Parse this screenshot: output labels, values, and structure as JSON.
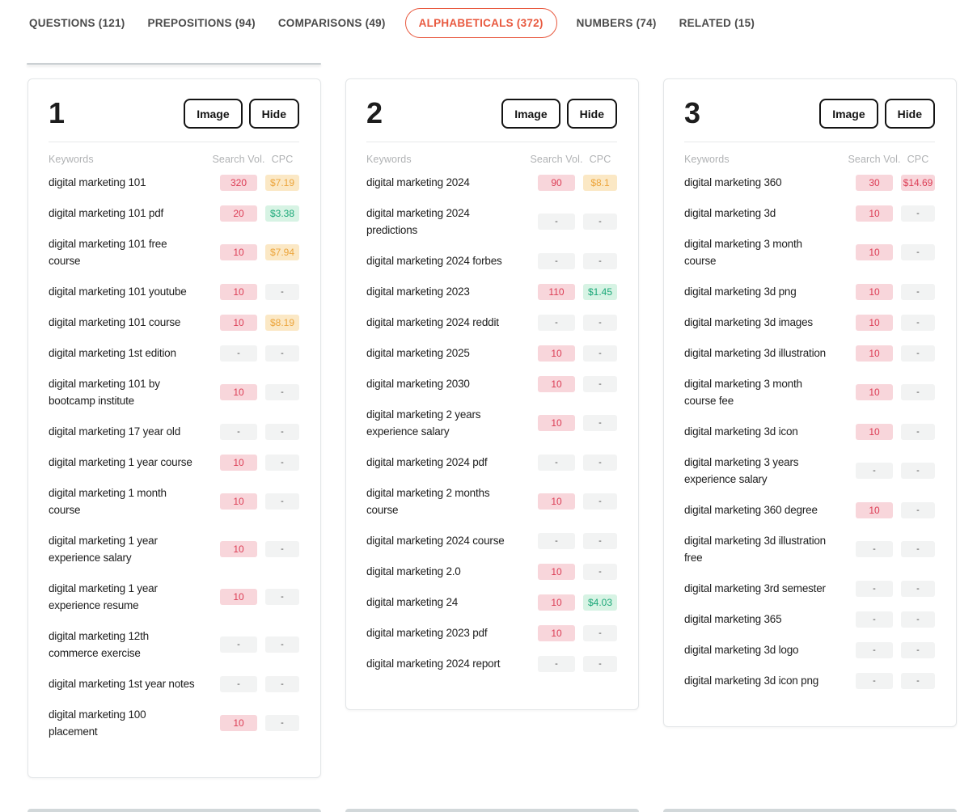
{
  "tabs": {
    "items": [
      {
        "label": "QUESTIONS (121)",
        "active": false
      },
      {
        "label": "PREPOSITIONS (94)",
        "active": false
      },
      {
        "label": "COMPARISONS (49)",
        "active": false
      },
      {
        "label": "ALPHABETICALS (372)",
        "active": true
      },
      {
        "label": "NUMBERS (74)",
        "active": false
      },
      {
        "label": "RELATED (15)",
        "active": false
      }
    ],
    "active_color": "#E8593F"
  },
  "table": {
    "image_button": "Image",
    "hide_button": "Hide",
    "keywords_header": "Keywords",
    "search_vol_header": "Search Vol.",
    "cpc_header": "CPC"
  },
  "badge_colors": {
    "volume_bg": "#f8d6db",
    "volume_text": "#dc3d55",
    "cpc_orange_bg": "#fbe8c5",
    "cpc_orange_text": "#eca53c",
    "cpc_green_bg": "#d7f3e4",
    "cpc_green_text": "#1ba878",
    "empty_bg": "#f2f3f3",
    "empty_text": "#4a4a4a"
  },
  "cards": [
    {
      "number": "1",
      "rows": [
        {
          "keyword": "digital marketing 101",
          "search_vol": {
            "text": "320",
            "style": "pink"
          },
          "cpc": {
            "text": "$7.19",
            "style": "orange"
          }
        },
        {
          "keyword": "digital marketing 101 pdf",
          "search_vol": {
            "text": "20",
            "style": "pink"
          },
          "cpc": {
            "text": "$3.38",
            "style": "green"
          }
        },
        {
          "keyword": "digital marketing 101 free\ncourse",
          "search_vol": {
            "text": "10",
            "style": "pink"
          },
          "cpc": {
            "text": "$7.94",
            "style": "orange"
          }
        },
        {
          "keyword": "digital marketing 101 youtube",
          "search_vol": {
            "text": "10",
            "style": "pink"
          },
          "cpc": {
            "text": "-",
            "style": "gray"
          }
        },
        {
          "keyword": "digital marketing 101 course",
          "search_vol": {
            "text": "10",
            "style": "pink"
          },
          "cpc": {
            "text": "$8.19",
            "style": "orange"
          }
        },
        {
          "keyword": "digital marketing 1st edition",
          "search_vol": {
            "text": "-",
            "style": "gray"
          },
          "cpc": {
            "text": "-",
            "style": "gray"
          }
        },
        {
          "keyword": "digital marketing 101 by\nbootcamp institute",
          "search_vol": {
            "text": "10",
            "style": "pink"
          },
          "cpc": {
            "text": "-",
            "style": "gray"
          }
        },
        {
          "keyword": "digital marketing 17 year old",
          "search_vol": {
            "text": "-",
            "style": "gray"
          },
          "cpc": {
            "text": "-",
            "style": "gray"
          }
        },
        {
          "keyword": "digital marketing 1 year course",
          "search_vol": {
            "text": "10",
            "style": "pink"
          },
          "cpc": {
            "text": "-",
            "style": "gray"
          }
        },
        {
          "keyword": "digital marketing 1 month\ncourse",
          "search_vol": {
            "text": "10",
            "style": "pink"
          },
          "cpc": {
            "text": "-",
            "style": "gray"
          }
        },
        {
          "keyword": "digital marketing 1 year\nexperience salary",
          "search_vol": {
            "text": "10",
            "style": "pink"
          },
          "cpc": {
            "text": "-",
            "style": "gray"
          }
        },
        {
          "keyword": "digital marketing 1 year\nexperience resume",
          "search_vol": {
            "text": "10",
            "style": "pink"
          },
          "cpc": {
            "text": "-",
            "style": "gray"
          }
        },
        {
          "keyword": "digital marketing 12th\ncommerce exercise",
          "search_vol": {
            "text": "-",
            "style": "gray"
          },
          "cpc": {
            "text": "-",
            "style": "gray"
          }
        },
        {
          "keyword": "digital marketing 1st year notes",
          "search_vol": {
            "text": "-",
            "style": "gray"
          },
          "cpc": {
            "text": "-",
            "style": "gray"
          }
        },
        {
          "keyword": "digital marketing 100\nplacement",
          "search_vol": {
            "text": "10",
            "style": "pink"
          },
          "cpc": {
            "text": "-",
            "style": "gray"
          }
        }
      ]
    },
    {
      "number": "2",
      "rows": [
        {
          "keyword": "digital marketing 2024",
          "search_vol": {
            "text": "90",
            "style": "pink"
          },
          "cpc": {
            "text": "$8.1",
            "style": "orange"
          }
        },
        {
          "keyword": "digital marketing 2024\npredictions",
          "search_vol": {
            "text": "-",
            "style": "gray"
          },
          "cpc": {
            "text": "-",
            "style": "gray"
          }
        },
        {
          "keyword": "digital marketing 2024 forbes",
          "search_vol": {
            "text": "-",
            "style": "gray"
          },
          "cpc": {
            "text": "-",
            "style": "gray"
          }
        },
        {
          "keyword": "digital marketing 2023",
          "search_vol": {
            "text": "110",
            "style": "pink"
          },
          "cpc": {
            "text": "$1.45",
            "style": "green"
          }
        },
        {
          "keyword": "digital marketing 2024 reddit",
          "search_vol": {
            "text": "-",
            "style": "gray"
          },
          "cpc": {
            "text": "-",
            "style": "gray"
          }
        },
        {
          "keyword": "digital marketing 2025",
          "search_vol": {
            "text": "10",
            "style": "pink"
          },
          "cpc": {
            "text": "-",
            "style": "gray"
          }
        },
        {
          "keyword": "digital marketing 2030",
          "search_vol": {
            "text": "10",
            "style": "pink"
          },
          "cpc": {
            "text": "-",
            "style": "gray"
          }
        },
        {
          "keyword": "digital marketing 2 years\nexperience salary",
          "search_vol": {
            "text": "10",
            "style": "pink"
          },
          "cpc": {
            "text": "-",
            "style": "gray"
          }
        },
        {
          "keyword": "digital marketing 2024 pdf",
          "search_vol": {
            "text": "-",
            "style": "gray"
          },
          "cpc": {
            "text": "-",
            "style": "gray"
          }
        },
        {
          "keyword": "digital marketing 2 months\ncourse",
          "search_vol": {
            "text": "10",
            "style": "pink"
          },
          "cpc": {
            "text": "-",
            "style": "gray"
          }
        },
        {
          "keyword": "digital marketing 2024 course",
          "search_vol": {
            "text": "-",
            "style": "gray"
          },
          "cpc": {
            "text": "-",
            "style": "gray"
          }
        },
        {
          "keyword": "digital marketing 2.0",
          "search_vol": {
            "text": "10",
            "style": "pink"
          },
          "cpc": {
            "text": "-",
            "style": "gray"
          }
        },
        {
          "keyword": "digital marketing 24",
          "search_vol": {
            "text": "10",
            "style": "pink"
          },
          "cpc": {
            "text": "$4.03",
            "style": "green"
          }
        },
        {
          "keyword": "digital marketing 2023 pdf",
          "search_vol": {
            "text": "10",
            "style": "pink"
          },
          "cpc": {
            "text": "-",
            "style": "gray"
          }
        },
        {
          "keyword": "digital marketing 2024 report",
          "search_vol": {
            "text": "-",
            "style": "gray"
          },
          "cpc": {
            "text": "-",
            "style": "gray"
          }
        }
      ]
    },
    {
      "number": "3",
      "rows": [
        {
          "keyword": "digital marketing 360",
          "search_vol": {
            "text": "30",
            "style": "pink"
          },
          "cpc": {
            "text": "$14.69",
            "style": "pink"
          }
        },
        {
          "keyword": "digital marketing 3d",
          "search_vol": {
            "text": "10",
            "style": "pink"
          },
          "cpc": {
            "text": "-",
            "style": "gray"
          }
        },
        {
          "keyword": "digital marketing 3 month\ncourse",
          "search_vol": {
            "text": "10",
            "style": "pink"
          },
          "cpc": {
            "text": "-",
            "style": "gray"
          }
        },
        {
          "keyword": "digital marketing 3d png",
          "search_vol": {
            "text": "10",
            "style": "pink"
          },
          "cpc": {
            "text": "-",
            "style": "gray"
          }
        },
        {
          "keyword": "digital marketing 3d images",
          "search_vol": {
            "text": "10",
            "style": "pink"
          },
          "cpc": {
            "text": "-",
            "style": "gray"
          }
        },
        {
          "keyword": "digital marketing 3d illustration",
          "search_vol": {
            "text": "10",
            "style": "pink"
          },
          "cpc": {
            "text": "-",
            "style": "gray"
          }
        },
        {
          "keyword": "digital marketing 3 month\ncourse fee",
          "search_vol": {
            "text": "10",
            "style": "pink"
          },
          "cpc": {
            "text": "-",
            "style": "gray"
          }
        },
        {
          "keyword": "digital marketing 3d icon",
          "search_vol": {
            "text": "10",
            "style": "pink"
          },
          "cpc": {
            "text": "-",
            "style": "gray"
          }
        },
        {
          "keyword": "digital marketing 3 years\nexperience salary",
          "search_vol": {
            "text": "-",
            "style": "gray"
          },
          "cpc": {
            "text": "-",
            "style": "gray"
          }
        },
        {
          "keyword": "digital marketing 360 degree",
          "search_vol": {
            "text": "10",
            "style": "pink"
          },
          "cpc": {
            "text": "-",
            "style": "gray"
          }
        },
        {
          "keyword": "digital marketing 3d illustration\nfree",
          "search_vol": {
            "text": "-",
            "style": "gray"
          },
          "cpc": {
            "text": "-",
            "style": "gray"
          }
        },
        {
          "keyword": "digital marketing 3rd semester",
          "search_vol": {
            "text": "-",
            "style": "gray"
          },
          "cpc": {
            "text": "-",
            "style": "gray"
          }
        },
        {
          "keyword": "digital marketing 365",
          "search_vol": {
            "text": "-",
            "style": "gray"
          },
          "cpc": {
            "text": "-",
            "style": "gray"
          }
        },
        {
          "keyword": "digital marketing 3d logo",
          "search_vol": {
            "text": "-",
            "style": "gray"
          },
          "cpc": {
            "text": "-",
            "style": "gray"
          }
        },
        {
          "keyword": "digital marketing 3d icon png",
          "search_vol": {
            "text": "-",
            "style": "gray"
          },
          "cpc": {
            "text": "-",
            "style": "gray"
          }
        }
      ]
    }
  ]
}
